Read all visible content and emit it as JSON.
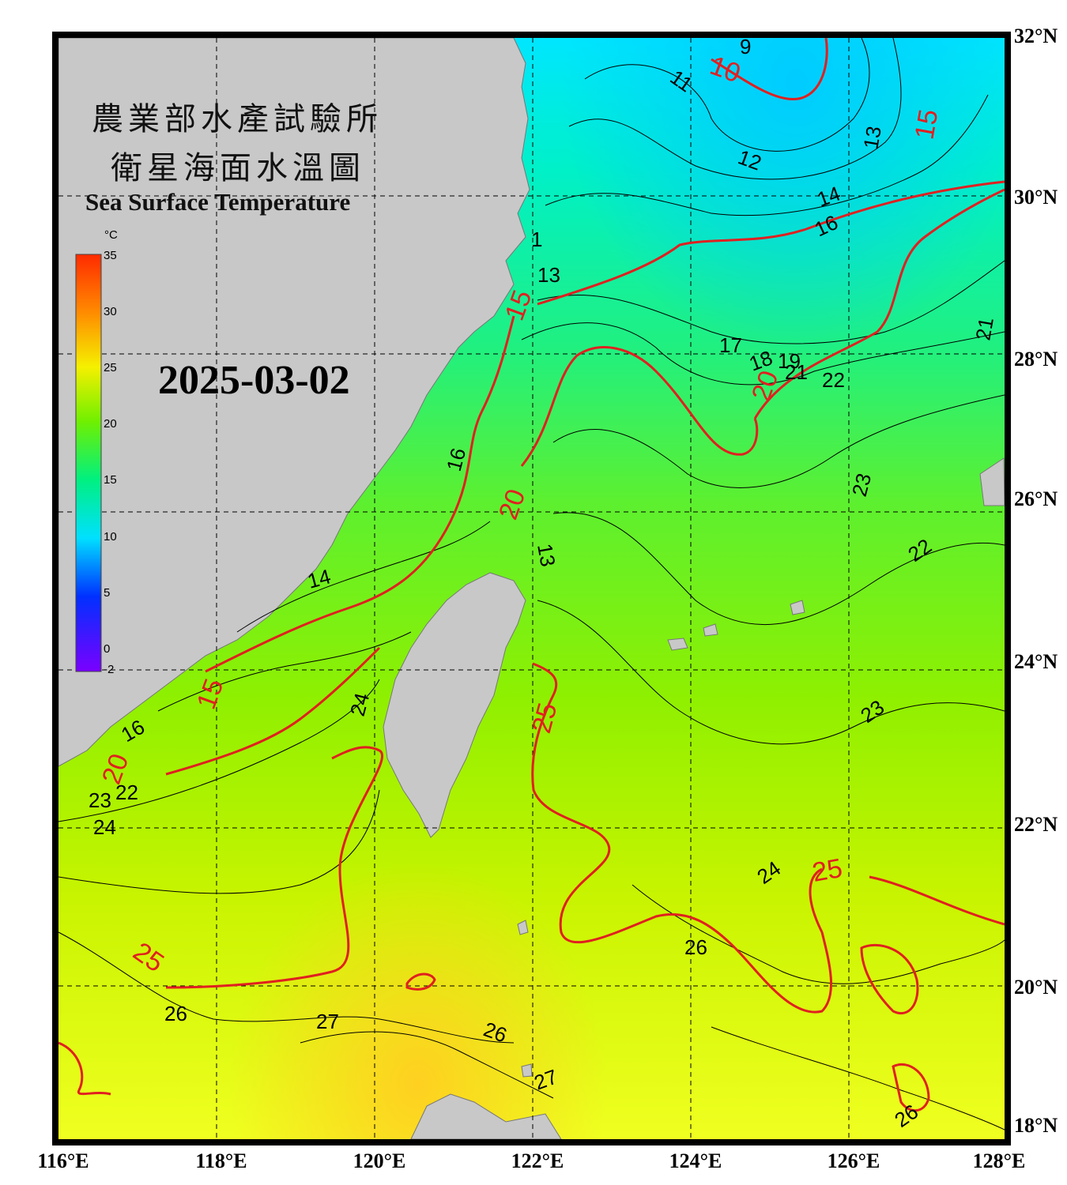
{
  "header": {
    "title_cn_line1": "農業部水產試驗所",
    "title_cn_line2": "衛星海面水溫圖",
    "title_en": "Sea Surface Temperature"
  },
  "date": "2025-03-02",
  "colorbar": {
    "unit": "°C",
    "min": -2,
    "max": 35,
    "ticks": [
      "35",
      "30",
      "25",
      "20",
      "15",
      "10",
      "5",
      "0",
      "-2"
    ]
  },
  "axes": {
    "lon_labels": [
      "116°E",
      "118°E",
      "120°E",
      "122°E",
      "124°E",
      "126°E",
      "128°E"
    ],
    "lat_labels": [
      "32°N",
      "30°N",
      "28°N",
      "26°N",
      "24°N",
      "22°N",
      "20°N",
      "18°N"
    ]
  },
  "isotherm_labels_black": [
    "9",
    "11",
    "12",
    "13",
    "13",
    "14",
    "16",
    "16",
    "17",
    "18",
    "19",
    "21",
    "22",
    "21",
    "23",
    "22",
    "23",
    "24",
    "24",
    "24",
    "26",
    "26",
    "27",
    "26",
    "27",
    "26",
    "14",
    "16",
    "1",
    "13",
    "23",
    "22"
  ],
  "isotherm_labels_red": [
    "10",
    "15",
    "15",
    "20",
    "20",
    "20",
    "15",
    "25",
    "25",
    "25"
  ],
  "colors": {
    "land": "#c8c8c8",
    "frame": "#000000",
    "isotherm_red": "#e02020",
    "isotherm_black": "#000000"
  }
}
